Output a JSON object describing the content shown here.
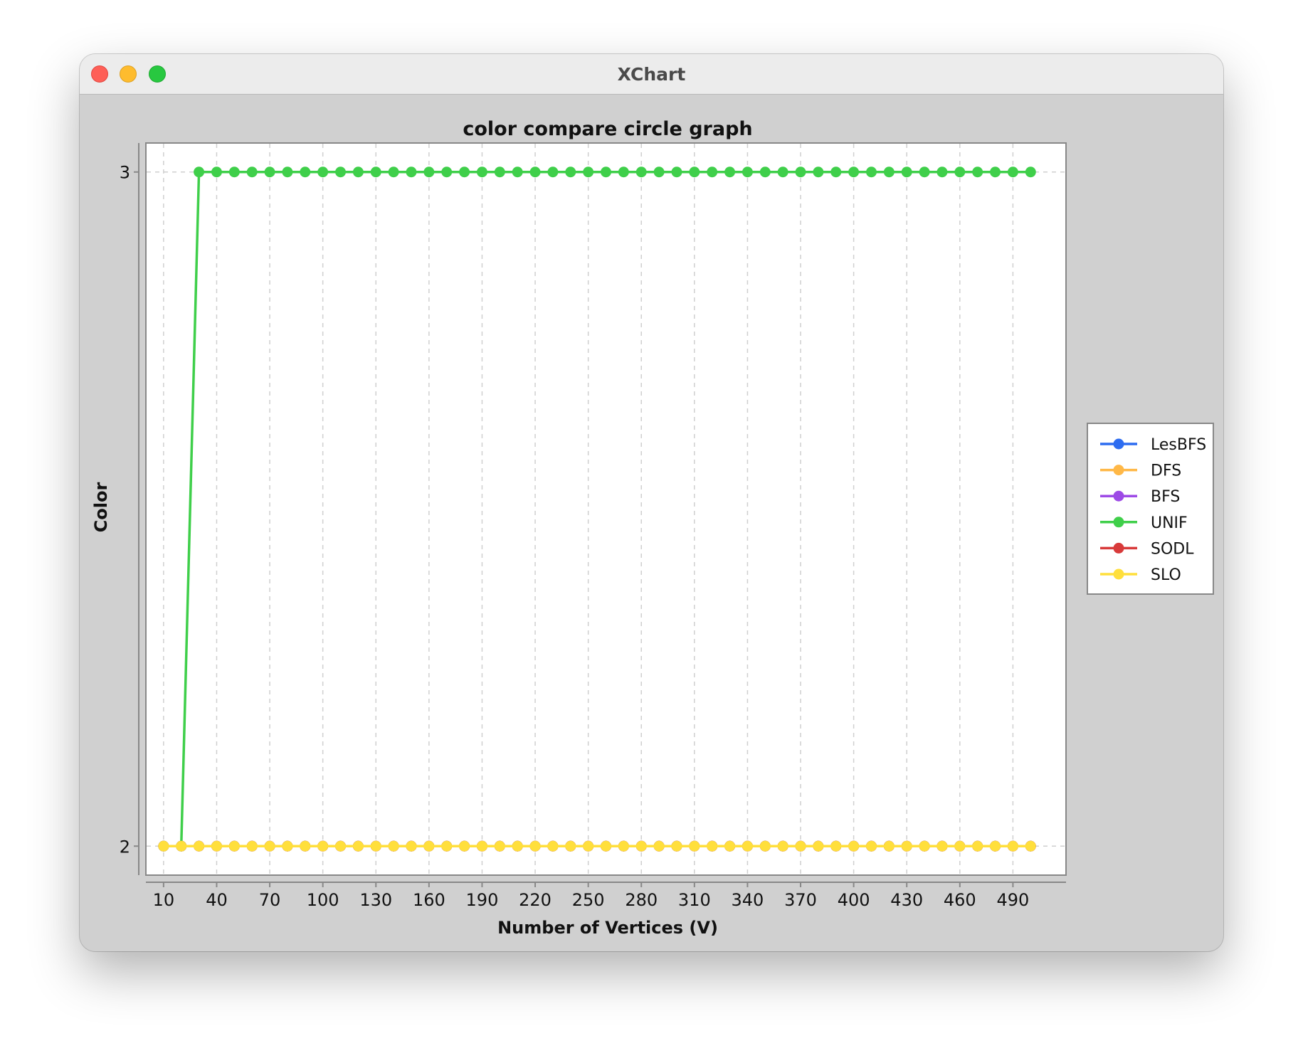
{
  "window": {
    "title": "XChart"
  },
  "colors": {
    "LesBFS": "#2d6cf0",
    "DFS": "#ffb847",
    "BFS": "#9d4ae6",
    "UNIF": "#3fcf4a",
    "SODL": "#d83a3a",
    "SLO": "#ffdf3c"
  },
  "chart_data": {
    "type": "line",
    "title": "color compare circle graph",
    "xlabel": "Number of Vertices (V)",
    "ylabel": "Color",
    "xlim": [
      0,
      520
    ],
    "ylim": [
      1.957,
      3.043
    ],
    "x_ticks": [
      10,
      40,
      70,
      100,
      130,
      160,
      190,
      220,
      250,
      280,
      310,
      340,
      370,
      400,
      430,
      460,
      490
    ],
    "y_ticks": [
      2,
      3
    ],
    "grid": true,
    "legend_position": "right",
    "x": [
      10,
      20,
      30,
      40,
      50,
      60,
      70,
      80,
      90,
      100,
      110,
      120,
      130,
      140,
      150,
      160,
      170,
      180,
      190,
      200,
      210,
      220,
      230,
      240,
      250,
      260,
      270,
      280,
      290,
      300,
      310,
      320,
      330,
      340,
      350,
      360,
      370,
      380,
      390,
      400,
      410,
      420,
      430,
      440,
      450,
      460,
      470,
      480,
      490,
      500
    ],
    "series": [
      {
        "name": "LesBFS",
        "values": [
          2,
          2,
          2,
          2,
          2,
          2,
          2,
          2,
          2,
          2,
          2,
          2,
          2,
          2,
          2,
          2,
          2,
          2,
          2,
          2,
          2,
          2,
          2,
          2,
          2,
          2,
          2,
          2,
          2,
          2,
          2,
          2,
          2,
          2,
          2,
          2,
          2,
          2,
          2,
          2,
          2,
          2,
          2,
          2,
          2,
          2,
          2,
          2,
          2,
          2
        ]
      },
      {
        "name": "DFS",
        "values": [
          2,
          2,
          2,
          2,
          2,
          2,
          2,
          2,
          2,
          2,
          2,
          2,
          2,
          2,
          2,
          2,
          2,
          2,
          2,
          2,
          2,
          2,
          2,
          2,
          2,
          2,
          2,
          2,
          2,
          2,
          2,
          2,
          2,
          2,
          2,
          2,
          2,
          2,
          2,
          2,
          2,
          2,
          2,
          2,
          2,
          2,
          2,
          2,
          2,
          2
        ]
      },
      {
        "name": "BFS",
        "values": [
          2,
          2,
          2,
          2,
          2,
          2,
          2,
          2,
          2,
          2,
          2,
          2,
          2,
          2,
          2,
          2,
          2,
          2,
          2,
          2,
          2,
          2,
          2,
          2,
          2,
          2,
          2,
          2,
          2,
          2,
          2,
          2,
          2,
          2,
          2,
          2,
          2,
          2,
          2,
          2,
          2,
          2,
          2,
          2,
          2,
          2,
          2,
          2,
          2,
          2
        ]
      },
      {
        "name": "UNIF",
        "values": [
          2,
          2,
          3,
          3,
          3,
          3,
          3,
          3,
          3,
          3,
          3,
          3,
          3,
          3,
          3,
          3,
          3,
          3,
          3,
          3,
          3,
          3,
          3,
          3,
          3,
          3,
          3,
          3,
          3,
          3,
          3,
          3,
          3,
          3,
          3,
          3,
          3,
          3,
          3,
          3,
          3,
          3,
          3,
          3,
          3,
          3,
          3,
          3,
          3,
          3
        ]
      },
      {
        "name": "SODL",
        "values": [
          2,
          2,
          2,
          2,
          2,
          2,
          2,
          2,
          2,
          2,
          2,
          2,
          2,
          2,
          2,
          2,
          2,
          2,
          2,
          2,
          2,
          2,
          2,
          2,
          2,
          2,
          2,
          2,
          2,
          2,
          2,
          2,
          2,
          2,
          2,
          2,
          2,
          2,
          2,
          2,
          2,
          2,
          2,
          2,
          2,
          2,
          2,
          2,
          2,
          2
        ]
      },
      {
        "name": "SLO",
        "values": [
          2,
          2,
          2,
          2,
          2,
          2,
          2,
          2,
          2,
          2,
          2,
          2,
          2,
          2,
          2,
          2,
          2,
          2,
          2,
          2,
          2,
          2,
          2,
          2,
          2,
          2,
          2,
          2,
          2,
          2,
          2,
          2,
          2,
          2,
          2,
          2,
          2,
          2,
          2,
          2,
          2,
          2,
          2,
          2,
          2,
          2,
          2,
          2,
          2,
          2
        ]
      }
    ]
  }
}
